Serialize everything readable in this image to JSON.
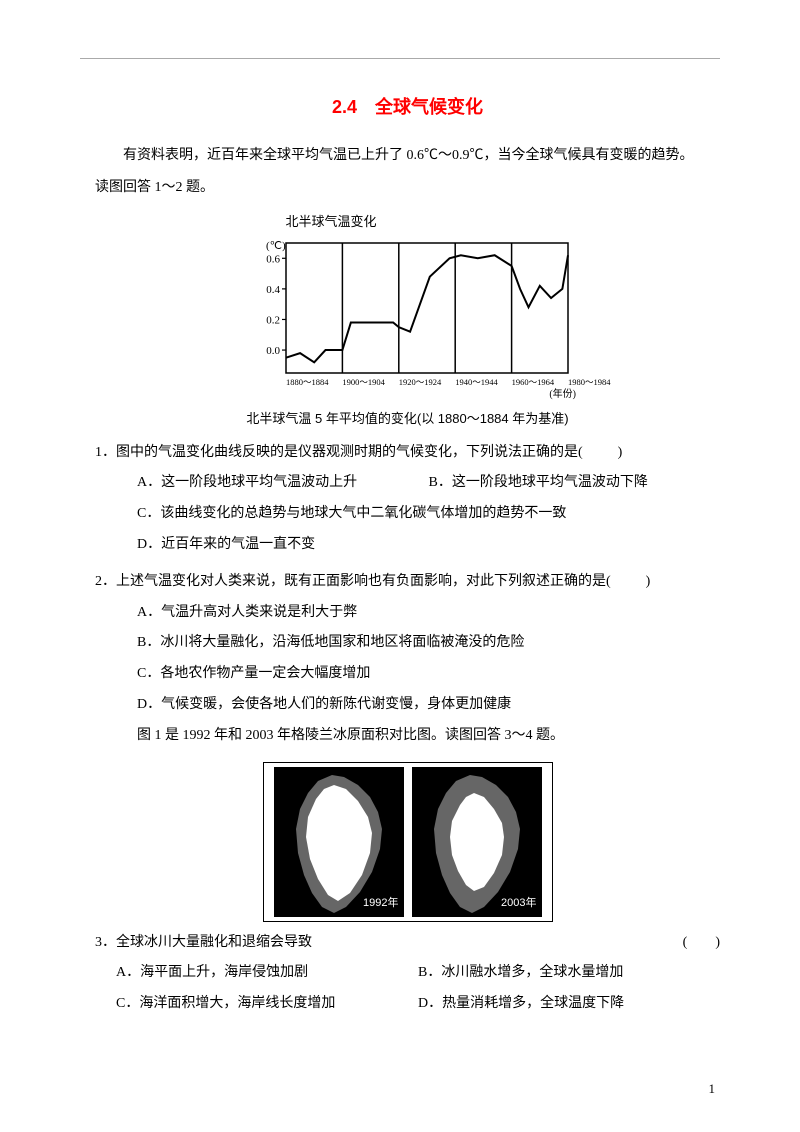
{
  "title": "2.4　全球气候变化",
  "intro_l1": "有资料表明，近百年来全球平均气温已上升了 0.6℃～0.9℃，当今全球气候具有变暖的趋势。",
  "intro_l2": "读图回答 1～2 题。",
  "chart": {
    "title": "北半球气温变化",
    "y_unit": "(℃)",
    "caption": "北半球气温 5 年平均值的变化(以 1880～1884 年为基准)",
    "x_caption": "(年份)",
    "y_ticks": [
      "0.0",
      "0.2",
      "0.4",
      "0.6"
    ],
    "y_min": -0.15,
    "y_max": 0.7,
    "x_labels": [
      "1880～1884",
      "1900～1904",
      "1920～1924",
      "1940～1944",
      "1960～1964",
      "1980～1984"
    ],
    "x_positions": [
      0,
      1,
      2,
      3,
      4,
      5
    ],
    "line_points": [
      [
        0.0,
        -0.05
      ],
      [
        0.25,
        -0.02
      ],
      [
        0.5,
        -0.08
      ],
      [
        0.7,
        0.0
      ],
      [
        1.0,
        0.0
      ],
      [
        1.15,
        0.18
      ],
      [
        1.5,
        0.18
      ],
      [
        1.9,
        0.18
      ],
      [
        2.0,
        0.15
      ],
      [
        2.2,
        0.12
      ],
      [
        2.55,
        0.48
      ],
      [
        2.9,
        0.6
      ],
      [
        3.1,
        0.62
      ],
      [
        3.4,
        0.6
      ],
      [
        3.7,
        0.62
      ],
      [
        4.0,
        0.55
      ],
      [
        4.15,
        0.4
      ],
      [
        4.3,
        0.28
      ],
      [
        4.5,
        0.42
      ],
      [
        4.7,
        0.34
      ],
      [
        4.9,
        0.4
      ],
      [
        5.0,
        0.62
      ]
    ],
    "axis_color": "#000000",
    "line_color": "#000000",
    "line_width": 2
  },
  "q1": {
    "stem": "1．图中的气温变化曲线反映的是仪器观测时期的气候变化，下列说法正确的是(",
    "stem_end": ")",
    "a": "A．这一阶段地球平均气温波动上升",
    "b": "B．这一阶段地球平均气温波动下降",
    "c": "C．该曲线变化的总趋势与地球大气中二氧化碳气体增加的趋势不一致",
    "d": "D．近百年来的气温一直不变"
  },
  "q2": {
    "stem": "2．上述气温变化对人类来说，既有正面影响也有负面影响，对此下列叙述正确的是(",
    "stem_end": ")",
    "a": "A．气温升高对人类来说是利大于弊",
    "b": "B．冰川将大量融化，沿海低地国家和地区将面临被淹没的危险",
    "c": "C．各地农作物产量一定会大幅度增加",
    "d": "D．气候变暖，会使各地人们的新陈代谢变慢，身体更加健康",
    "fig_intro": "图 1 是 1992 年和 2003 年格陵兰冰原面积对比图。读图回答 3～4 题。"
  },
  "maps": {
    "year1": "1992年",
    "year2": "2003年"
  },
  "q3": {
    "stem": "3．全球冰川大量融化和退缩会导致",
    "paren": "(　　)",
    "a": "A．海平面上升，海岸侵蚀加剧",
    "b": "B．冰川融水增多，全球水量增加",
    "c": "C．海洋面积增大，海岸线长度增加",
    "d": "D．热量消耗增多，全球温度下降"
  },
  "page_number": "1",
  "colors": {
    "title": "#ff0000",
    "text": "#000000",
    "background": "#ffffff"
  }
}
